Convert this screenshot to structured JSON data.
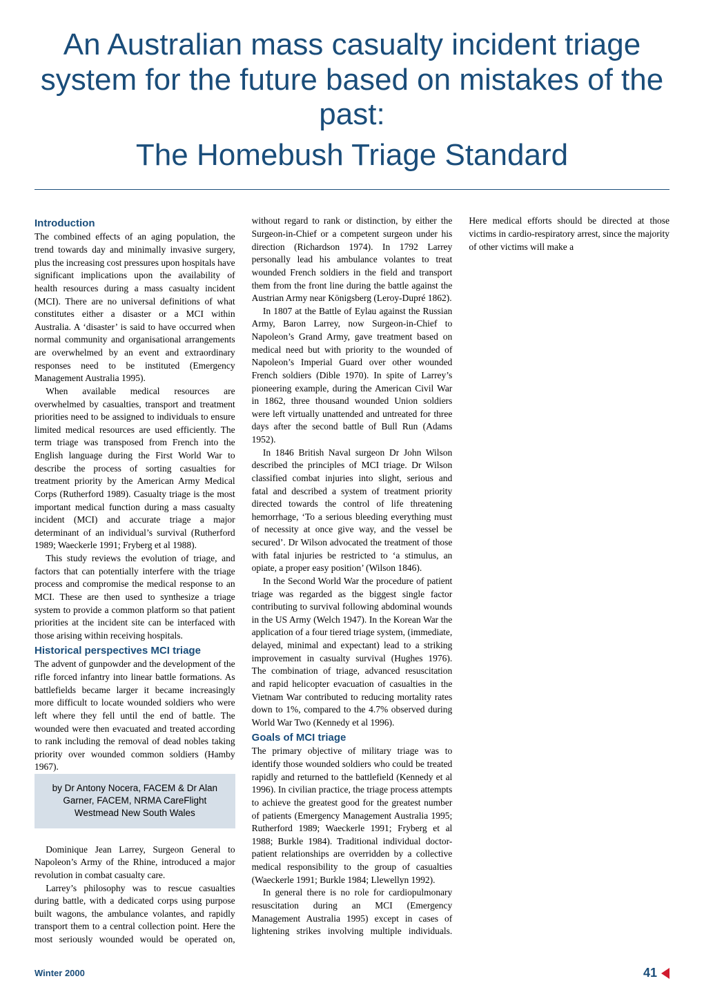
{
  "title": {
    "main_lines": "An Australian mass casualty incident triage system for the future based on mistakes of the past:",
    "subtitle": "The Homebush Triage Standard",
    "color": "#1a4d7a",
    "fontsize": 44
  },
  "byline": {
    "line1": "by Dr Antony Nocera, FACEM & Dr Alan",
    "line2": "Garner, FACEM, NRMA CareFlight",
    "line3": "Westmead New South Wales",
    "background": "#d6dfe8"
  },
  "sections": {
    "introduction": {
      "heading": "Introduction",
      "p1": "The combined effects of an aging population, the trend towards day and minimally invasive surgery, plus the increasing cost pressures upon hospitals have significant implications upon the availability of health resources during a mass casualty incident (MCI). There are no universal definitions of what constitutes either a disaster or a MCI within Australia. A ‘disaster’ is said to have occurred when normal community and organisational arrangements are overwhelmed by an event and extraordinary responses need to be instituted (Emergency Management Australia 1995).",
      "p2": "When available medical resources are overwhelmed by casualties, transport and treatment priorities need to be assigned to individuals to ensure limited medical resources are used efficiently. The term triage was transposed from French into the English language during the First World War to describe the process of sorting casualties for treatment priority by the American Army Medical Corps (Rutherford 1989). Casualty triage is the most important medical function during a mass casualty incident (MCI) and accurate triage a major determinant of an individual’s survival (Rutherford 1989; Waeckerle 1991; Fryberg et al 1988).",
      "p3": "This study reviews the evolution of triage, and factors that can potentially interfere with the triage process and compromise the medical response to an MCI. These are then used to synthesize a triage system to provide a common platform so that patient priorities at the incident site can be interfaced with those arising within receiving hospitals."
    },
    "historical": {
      "heading": "Historical perspectives MCI triage",
      "p1": "The advent of gunpowder and the development of the rifle forced infantry into linear battle formations. As battlefields became larger it became increasingly more difficult to locate wounded soldiers who were left where they fell until the end of battle. The wounded were then evacuated and treated according to rank including the removal of dead nobles taking priority over wounded common soldiers (Hamby 1967).",
      "p2": "Dominique Jean Larrey, Surgeon General to Napoleon’s Army of the Rhine, introduced a major revolution in combat casualty care.",
      "p3": "Larrey’s philosophy was to rescue casualties during battle, with a dedicated corps using purpose built wagons, the ambulance volantes, and rapidly transport them to a central collection point. Here the most seriously wounded would be operated on, without regard to rank or distinction, by either the Surgeon-in-Chief or a competent surgeon under his direction (Richardson 1974). In 1792 Larrey personally lead his ambulance volantes to treat wounded French soldiers in the field and transport them from the front line during the battle against the Austrian Army near Königsberg (Leroy-Dupré 1862).",
      "p4": "In 1807 at the Battle of Eylau against the Russian Army, Baron Larrey, now Surgeon-in-Chief to Napoleon’s Grand Army, gave treatment based on medical need but with priority to the wounded of Napoleon’s Imperial Guard over other wounded French soldiers (Dible 1970). In spite of Larrey’s pioneering example, during the American Civil War in 1862, three thousand wounded Union soldiers were left virtually unattended and untreated for three days after the second battle of Bull Run (Adams 1952).",
      "p5": "In 1846 British Naval surgeon Dr John Wilson described the principles of MCI triage. Dr Wilson classified combat injuries into slight, serious and fatal and described a system of treatment priority directed towards the control of life threatening hemorrhage, ‘To a serious bleeding everything must of necessity at once give way, and the vessel be secured’. Dr Wilson advocated the treatment of those with fatal injuries be restricted to ‘a stimulus, an opiate, a proper easy position’ (Wilson 1846).",
      "p6": "In the Second World War the procedure of patient triage was regarded as the biggest single factor contributing to survival following abdominal wounds in the US Army (Welch 1947). In the Korean War the application of a four tiered triage system, (immediate, delayed, minimal and expectant) lead to a striking improvement in casualty survival (Hughes 1976). The combination of triage, advanced resuscitation and rapid helicopter evacuation of casualties in the Vietnam War contributed to reducing mortality rates down to 1%, compared to the 4.7% observed during World War Two (Kennedy et al 1996)."
    },
    "goals": {
      "heading": "Goals of MCI triage",
      "p1": "The primary objective of military triage was to identify those wounded soldiers who could be treated rapidly and returned to the battlefield (Kennedy et al 1996). In civilian practice, the triage process attempts to achieve the greatest good for the greatest number of patients (Emergency Management Australia 1995; Rutherford 1989; Waeckerle 1991; Fryberg et al 1988; Burkle 1984). Traditional individual doctor-patient relationships are overridden by a collective medical responsibility to the group of casualties (Waeckerle 1991; Burkle 1984; Llewellyn 1992).",
      "p2": "In general there is no role for cardiopulmonary resuscitation during an MCI (Emergency Management Australia 1995) except in cases of lightening strikes involving multiple individuals. Here medical efforts should be directed at those victims in cardio-respiratory arrest, since the majority of other victims will make a"
    }
  },
  "footer": {
    "issue": "Winter 2000",
    "page_number": "41",
    "issue_color": "#1a4d7a",
    "triangle_color": "#d01b2e"
  },
  "style": {
    "heading_color": "#1a4d7a",
    "body_color": "#000000",
    "body_fontsize": 13.5,
    "heading_fontsize": 15,
    "background": "#ffffff",
    "column_count": 3,
    "column_gap": 24
  }
}
